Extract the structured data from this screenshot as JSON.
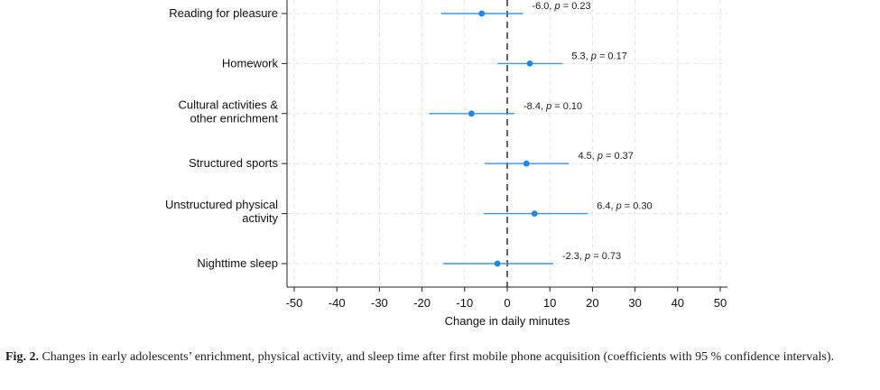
{
  "chart_data": {
    "type": "scatter",
    "subtype": "coefficient-plot",
    "title": "",
    "xlabel": "Change in daily minutes",
    "ylabel": "",
    "xlim": [
      -50,
      50
    ],
    "xticks": [
      -50,
      -40,
      -30,
      -20,
      -10,
      0,
      10,
      20,
      30,
      40,
      50
    ],
    "reference_line_x": 0,
    "grid": true,
    "rows": [
      {
        "label_lines": [
          "Reading for pleasure"
        ],
        "estimate": -6.0,
        "ci_low": -15.5,
        "ci_high": 3.7,
        "annot_value": "-6.0",
        "annot_p": "0.23"
      },
      {
        "label_lines": [
          "Homework"
        ],
        "estimate": 5.3,
        "ci_low": -2.3,
        "ci_high": 13.0,
        "annot_value": "5.3",
        "annot_p": "0.17"
      },
      {
        "label_lines": [
          "Cultural activities &",
          "other enrichment"
        ],
        "estimate": -8.4,
        "ci_low": -18.3,
        "ci_high": 1.7,
        "annot_value": "-8.4",
        "annot_p": "0.10"
      },
      {
        "label_lines": [
          "Structured sports"
        ],
        "estimate": 4.5,
        "ci_low": -5.3,
        "ci_high": 14.5,
        "annot_value": "4.5",
        "annot_p": "0.37"
      },
      {
        "label_lines": [
          "Unstructured physical",
          "activity"
        ],
        "estimate": 6.4,
        "ci_low": -5.5,
        "ci_high": 18.9,
        "annot_value": "6.4",
        "annot_p": "0.30"
      },
      {
        "label_lines": [
          "Nighttime sleep"
        ],
        "estimate": -2.3,
        "ci_low": -15.0,
        "ci_high": 10.8,
        "annot_value": "-2.3",
        "annot_p": "0.73"
      }
    ],
    "annotation_template": {
      "p_symbol": "p",
      "separator": ", ",
      "equals": " = "
    },
    "colors": {
      "marker": "#1e88e5",
      "ci_line": "#3b95e6",
      "reference_line": "#111111",
      "grid": "#e6e6e6"
    }
  },
  "caption": {
    "label": "Fig. 2.",
    "text": " Changes in early adolescents’ enrichment, physical activity, and sleep time after first mobile phone acquisition (coefficients with 95 % confidence intervals)."
  }
}
